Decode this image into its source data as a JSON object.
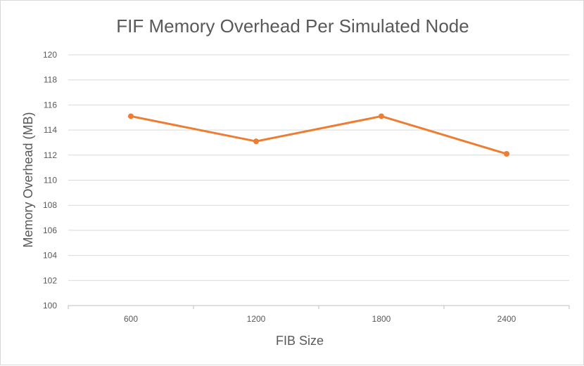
{
  "chart_data": {
    "type": "line",
    "title": "FIF Memory Overhead Per Simulated Node",
    "xlabel": "FIB Size",
    "ylabel": "Memory Overhead (MB)",
    "categories": [
      "600",
      "1200",
      "1800",
      "2400"
    ],
    "series": [
      {
        "values": [
          115.1,
          113.1,
          115.1,
          112.1
        ]
      }
    ],
    "ylim": [
      100,
      120
    ],
    "yticks": [
      "100",
      "102",
      "104",
      "106",
      "108",
      "110",
      "112",
      "114",
      "116",
      "118",
      "120"
    ],
    "grid": true,
    "legend": "none",
    "colors": {
      "series": "#ED7D31",
      "grid": "#d9d9d9",
      "text": "#595959"
    }
  }
}
